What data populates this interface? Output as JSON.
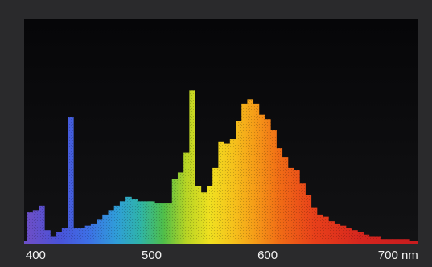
{
  "chart_data": {
    "type": "bar",
    "title": "",
    "xlabel": "",
    "ylabel": "",
    "x_unit": "nm",
    "xlim": [
      390,
      730
    ],
    "ylim": [
      0,
      100
    ],
    "grid": false,
    "x_tick_labels": [
      {
        "value": 400,
        "label": "400"
      },
      {
        "value": 500,
        "label": "500"
      },
      {
        "value": 600,
        "label": "600"
      },
      {
        "value": 700,
        "label": "700 nm"
      }
    ],
    "series": [
      {
        "x": [
          395,
          400,
          405,
          410,
          415,
          420,
          425,
          430,
          435,
          440,
          445,
          450,
          455,
          460,
          465,
          470,
          475,
          480,
          485,
          490,
          495,
          500,
          505,
          510,
          515,
          520,
          525,
          530,
          535,
          540,
          545,
          550,
          555,
          560,
          565,
          570,
          575,
          580,
          585,
          590,
          595,
          600,
          605,
          610,
          615,
          620,
          625,
          630,
          635,
          640,
          645,
          650,
          655,
          660,
          665,
          670,
          675,
          680,
          685,
          690,
          695,
          700,
          705,
          710,
          715,
          720
        ],
        "values": [
          13,
          14,
          16,
          5,
          2,
          4,
          6,
          56,
          6,
          6,
          7,
          8,
          10,
          12,
          14,
          16,
          18,
          20,
          19,
          18,
          18,
          18,
          17,
          17,
          17,
          28,
          31,
          40,
          68,
          25,
          22,
          25,
          33,
          45,
          44,
          46,
          54,
          62,
          64,
          62,
          57,
          55,
          50,
          42,
          38,
          33,
          32,
          26,
          21,
          15,
          12,
          11,
          9,
          8,
          7,
          6,
          5,
          4,
          3,
          2,
          2,
          1,
          1,
          1,
          1,
          1
        ]
      }
    ]
  }
}
